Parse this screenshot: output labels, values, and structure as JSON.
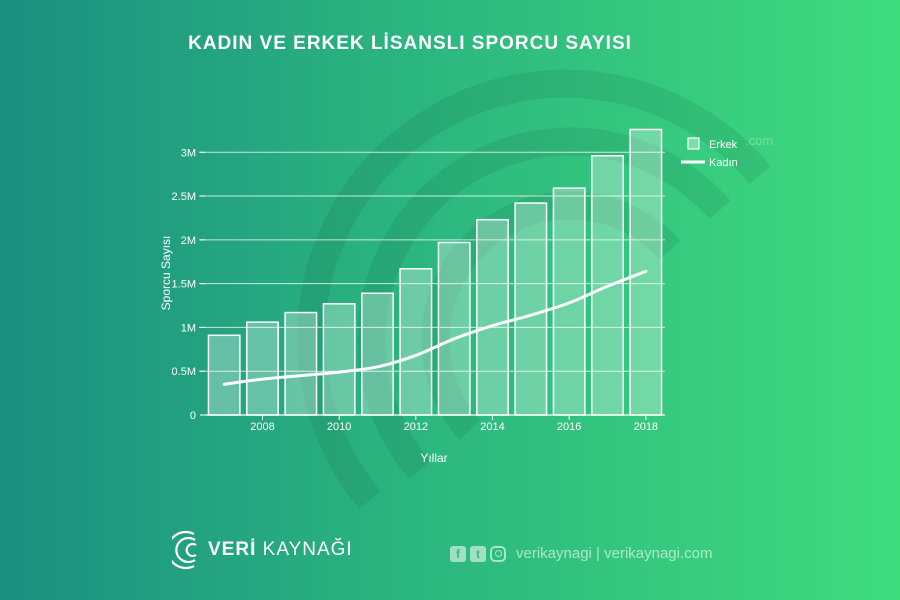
{
  "title": "KADIN VE ERKEK LİSANSLI SPORCU SAYISI",
  "chart_data": {
    "type": "bar",
    "title": "KADIN VE ERKEK LİSANSLI SPORCU SAYISI",
    "xlabel": "Yıllar",
    "ylabel": "Sporcu Sayısı",
    "x": [
      2007,
      2008,
      2009,
      2010,
      2011,
      2012,
      2013,
      2014,
      2015,
      2016,
      2017,
      2018
    ],
    "x_ticks": [
      "2008",
      "2010",
      "2012",
      "2014",
      "2016",
      "2018"
    ],
    "y_ticks": [
      "0",
      "0.5M",
      "1M",
      "1.5M",
      "2M",
      "2.5M",
      "3M"
    ],
    "ylim": [
      0,
      3300000
    ],
    "grid": true,
    "legend_position": "top-right",
    "series": [
      {
        "name": "Erkek",
        "type": "bar",
        "values": [
          910000,
          1060000,
          1170000,
          1270000,
          1390000,
          1670000,
          1970000,
          2230000,
          2420000,
          2590000,
          2960000,
          3260000
        ]
      },
      {
        "name": "Kadın",
        "type": "line",
        "values": [
          350000,
          410000,
          450000,
          490000,
          550000,
          680000,
          870000,
          1020000,
          1140000,
          1280000,
          1470000,
          1640000
        ]
      }
    ]
  },
  "colors": {
    "bar_fill": "#ffffff",
    "bar_stroke": "#ffffff",
    "line": "#ffffff",
    "bg_start": "#1b8f80",
    "bg_end": "#3fdc7e"
  },
  "footer": {
    "brand_prefix": "VERİ",
    "brand_suffix": "KAYNAĞI",
    "social_text": "verikaynagi | verikaynagi.com",
    "icons": [
      "facebook-icon",
      "twitter-icon",
      "instagram-icon"
    ]
  },
  "watermark_text": ".com"
}
